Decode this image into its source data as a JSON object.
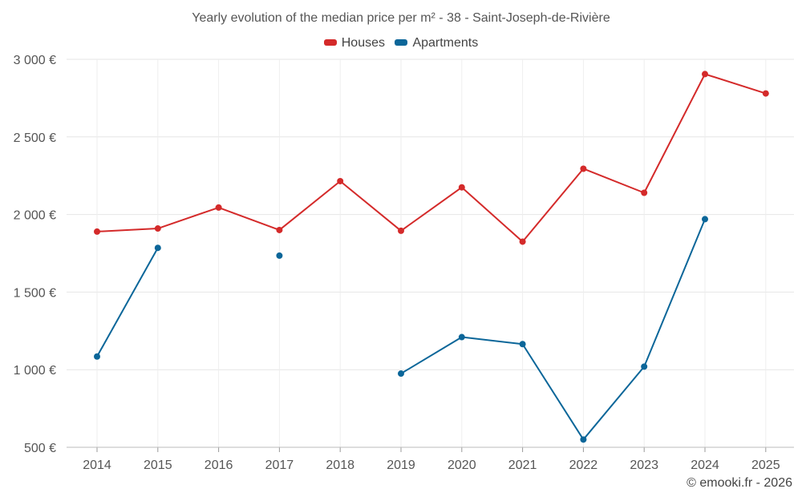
{
  "chart_data": {
    "type": "line",
    "title": "Yearly evolution of the median price per m² - 38 - Saint-Joseph-de-Rivière",
    "categories": [
      "2014",
      "2015",
      "2016",
      "2017",
      "2018",
      "2019",
      "2020",
      "2021",
      "2022",
      "2023",
      "2024",
      "2025"
    ],
    "ylim": [
      500,
      3000
    ],
    "yticks": [
      500,
      1000,
      1500,
      2000,
      2500,
      3000
    ],
    "ytick_labels": [
      "500 €",
      "1 000 €",
      "1 500 €",
      "2 000 €",
      "2 500 €",
      "3 000 €"
    ],
    "grid": true,
    "legend_position": "top-center",
    "series": [
      {
        "name": "Houses",
        "color": "#d42a2a",
        "values": [
          1890,
          1910,
          2045,
          1900,
          2215,
          1895,
          2175,
          1825,
          2295,
          2140,
          2905,
          2780
        ]
      },
      {
        "name": "Apartments",
        "color": "#0b6699",
        "values": [
          1085,
          1785,
          null,
          1735,
          null,
          975,
          1210,
          1165,
          550,
          1020,
          1970,
          null
        ]
      }
    ]
  },
  "footer": {
    "credit": "© emooki.fr - 2026"
  }
}
